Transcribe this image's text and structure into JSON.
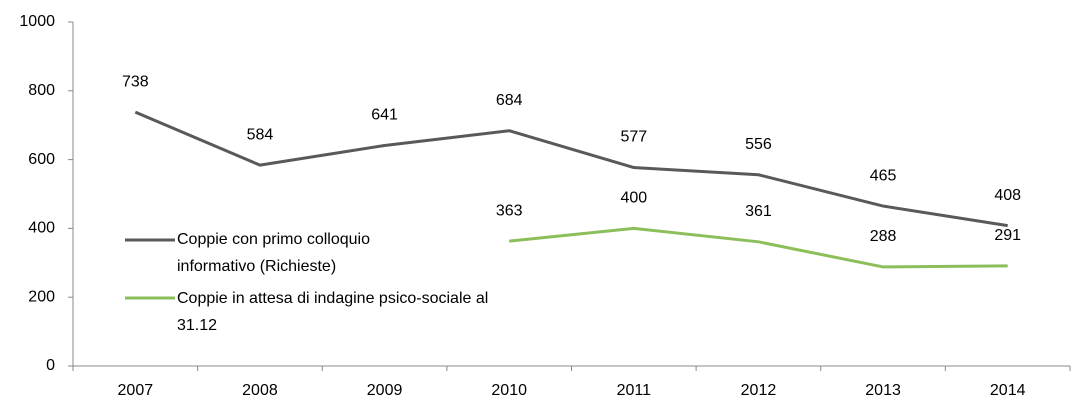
{
  "chart_data": {
    "type": "line",
    "categories": [
      "2007",
      "2008",
      "2009",
      "2010",
      "2011",
      "2012",
      "2013",
      "2014"
    ],
    "series": [
      {
        "name": "Coppie con primo colloquio informativo (Richieste)",
        "color": "#595959",
        "values": [
          738,
          584,
          641,
          684,
          577,
          556,
          465,
          408
        ]
      },
      {
        "name": "Coppie in attesa di indagine psico-sociale al 31.12",
        "color": "#8cbf5a",
        "values": [
          null,
          null,
          null,
          363,
          400,
          361,
          288,
          291
        ]
      }
    ],
    "ylim": [
      0,
      1000
    ],
    "yticks": [
      0,
      200,
      400,
      600,
      800,
      1000
    ],
    "grid": false,
    "data_labels": true
  }
}
